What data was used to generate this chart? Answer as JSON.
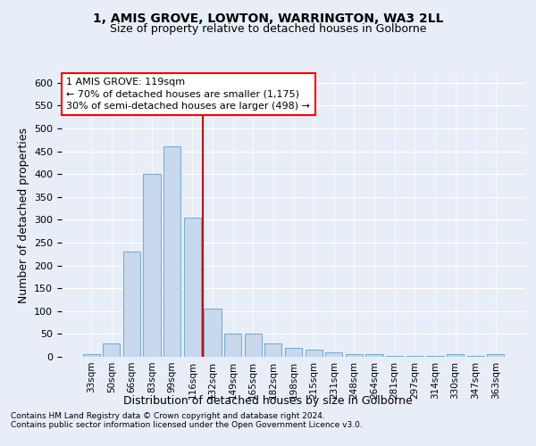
{
  "title1": "1, AMIS GROVE, LOWTON, WARRINGTON, WA3 2LL",
  "title2": "Size of property relative to detached houses in Golborne",
  "xlabel": "Distribution of detached houses by size in Golborne",
  "ylabel": "Number of detached properties",
  "bar_labels": [
    "33sqm",
    "50sqm",
    "66sqm",
    "83sqm",
    "99sqm",
    "116sqm",
    "132sqm",
    "149sqm",
    "165sqm",
    "182sqm",
    "198sqm",
    "215sqm",
    "231sqm",
    "248sqm",
    "264sqm",
    "281sqm",
    "297sqm",
    "314sqm",
    "330sqm",
    "347sqm",
    "363sqm"
  ],
  "bar_values": [
    5,
    30,
    230,
    400,
    460,
    305,
    105,
    50,
    50,
    30,
    20,
    15,
    10,
    5,
    5,
    2,
    2,
    2,
    5,
    2,
    5
  ],
  "bar_color": "#c8d9ee",
  "bar_edge_color": "#7aadd4",
  "vline_color": "#cc0000",
  "vline_pos": 5.5,
  "annotation_line1": "1 AMIS GROVE: 119sqm",
  "annotation_line2": "← 70% of detached houses are smaller (1,175)",
  "annotation_line3": "30% of semi-detached houses are larger (498) →",
  "ylim": [
    0,
    620
  ],
  "yticks": [
    0,
    50,
    100,
    150,
    200,
    250,
    300,
    350,
    400,
    450,
    500,
    550,
    600
  ],
  "footnote1": "Contains HM Land Registry data © Crown copyright and database right 2024.",
  "footnote2": "Contains public sector information licensed under the Open Government Licence v3.0.",
  "bg_color": "#e8eef8",
  "grid_color": "#ffffff"
}
